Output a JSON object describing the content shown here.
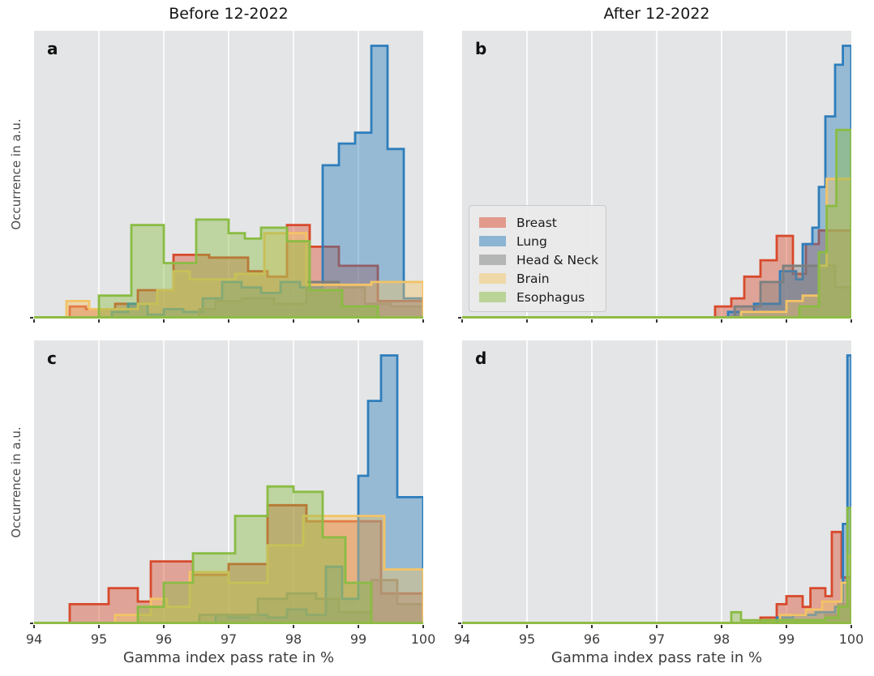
{
  "figure": {
    "col_titles": [
      "Before 12-2022",
      "After 12-2022"
    ],
    "panel_letters": [
      "a",
      "b",
      "c",
      "d"
    ]
  },
  "legend": {
    "items": [
      {
        "label": "Breast",
        "color": "#d8492c"
      },
      {
        "label": "Lung",
        "color": "#2e7ebc"
      },
      {
        "label": "Head & Neck",
        "color": "#7d7f7f"
      },
      {
        "label": "Brain",
        "color": "#f3c366"
      },
      {
        "label": "Esophagus",
        "color": "#8abc43"
      }
    ]
  },
  "chart_data": {
    "type": "histogram",
    "histtype": "stepfilled-outline",
    "xlabel": "Gamma index pass rate in %",
    "ylabel": "Occurrence in a.u.",
    "xlim": [
      94,
      100
    ],
    "xticks": [
      94,
      95,
      96,
      97,
      98,
      99,
      100
    ],
    "grid": "vertical white gridlines at integer ticks",
    "col_titles": [
      "Before 12-2022",
      "After 12-2022"
    ],
    "legend_position": "upper-left of panel b",
    "y_units": "arbitrary occurrence units, 0-100 = tallest bar of each panel",
    "colors": {
      "Breast": "#d8492c",
      "Lung": "#2e7ebc",
      "Head & Neck": "#7d7f7f",
      "Brain": "#f3c366",
      "Esophagus": "#8abc43"
    },
    "fill_opacity": 0.42,
    "panels": [
      {
        "label": "a",
        "row": 0,
        "col": 0,
        "title": "Before 12-2022",
        "series": [
          {
            "name": "Breast",
            "edges": [
              94,
              94.55,
              94.8,
              95.25,
              95.6,
              96.15,
              96.7,
              97.3,
              97.6,
              97.9,
              98.25,
              98.7,
              99.3,
              100
            ],
            "heights": [
              0,
              4,
              3,
              5,
              10,
              23,
              22,
              17,
              15,
              34,
              26,
              19,
              6
            ]
          },
          {
            "name": "Lung",
            "edges": [
              94,
              95.2,
              95.45,
              95.75,
              96.0,
              96.3,
              96.6,
              96.9,
              97.2,
              97.5,
              97.8,
              98.1,
              98.45,
              98.7,
              98.95,
              99.2,
              99.45,
              99.7,
              100
            ],
            "heights": [
              0,
              2,
              5,
              1,
              3,
              2,
              7,
              13,
              11,
              9,
              13,
              11,
              56,
              64,
              68,
              100,
              62,
              7
            ]
          },
          {
            "name": "Head & Neck",
            "edges": [
              94,
              96.55,
              96.8,
              97.2,
              97.7,
              98.2,
              98.7,
              99.1,
              99.5,
              100
            ],
            "heights": [
              0,
              3,
              6,
              7,
              5,
              13,
              11,
              5,
              4
            ]
          },
          {
            "name": "Brain",
            "edges": [
              94,
              94.5,
              94.85,
              95.6,
              95.9,
              96.15,
              96.4,
              97.1,
              97.55,
              98.2,
              99.2,
              100
            ],
            "heights": [
              0,
              6,
              3,
              5,
              10,
              17,
              14,
              16,
              31,
              12,
              13
            ]
          },
          {
            "name": "Esophagus",
            "edges": [
              94,
              95.0,
              95.5,
              96.0,
              96.5,
              97.0,
              97.25,
              97.5,
              97.9,
              98.25,
              98.75,
              99.3,
              100
            ],
            "heights": [
              0,
              8,
              34,
              20,
              36,
              31,
              29,
              33,
              28,
              10,
              4,
              0
            ]
          }
        ]
      },
      {
        "label": "b",
        "row": 0,
        "col": 1,
        "title": "After 12-2022",
        "series": [
          {
            "name": "Breast",
            "edges": [
              94,
              97.9,
              98.15,
              98.35,
              98.6,
              98.85,
              99.1,
              99.3,
              99.5,
              100
            ],
            "heights": [
              0,
              4,
              7,
              15,
              21,
              30,
              16,
              27,
              32
            ]
          },
          {
            "name": "Lung",
            "edges": [
              94,
              98.1,
              98.5,
              98.9,
              99.15,
              99.25,
              99.4,
              99.5,
              99.6,
              99.75,
              99.87,
              100
            ],
            "heights": [
              0,
              2,
              5,
              17,
              14,
              27,
              33,
              48,
              74,
              93,
              100
            ]
          },
          {
            "name": "Head & Neck",
            "edges": [
              94,
              98.2,
              98.6,
              98.95,
              99.25,
              99.75,
              100
            ],
            "heights": [
              0,
              4,
              13,
              19,
              19,
              11
            ]
          },
          {
            "name": "Brain",
            "edges": [
              94,
              98.3,
              99.0,
              99.25,
              99.5,
              99.62,
              100
            ],
            "heights": [
              0,
              2,
              6,
              8,
              19,
              51
            ]
          },
          {
            "name": "Esophagus",
            "edges": [
              94,
              99.2,
              99.5,
              99.62,
              99.77,
              100
            ],
            "heights": [
              0,
              4,
              24,
              41,
              69
            ]
          }
        ]
      },
      {
        "label": "c",
        "row": 1,
        "col": 0,
        "title": "Before 12-2022",
        "series": [
          {
            "name": "Breast",
            "edges": [
              94,
              94.55,
              95.15,
              95.6,
              95.8,
              96.45,
              97.0,
              97.6,
              98.2,
              99.35,
              100
            ],
            "heights": [
              0,
              7,
              13,
              8,
              23,
              18,
              22,
              44,
              38,
              11
            ]
          },
          {
            "name": "Lung",
            "edges": [
              94,
              96.8,
              97.0,
              97.3,
              97.6,
              97.9,
              98.2,
              98.5,
              98.75,
              99.0,
              99.15,
              99.35,
              99.6,
              100
            ],
            "heights": [
              0,
              3,
              2,
              3,
              2,
              5,
              3,
              21,
              9,
              55,
              83,
              100,
              47
            ]
          },
          {
            "name": "Head & Neck",
            "edges": [
              94,
              96.55,
              97.45,
              97.9,
              98.35,
              98.7,
              99.2,
              99.6,
              100
            ],
            "heights": [
              0,
              3,
              9,
              11,
              9,
              4,
              16,
              7
            ]
          },
          {
            "name": "Brain",
            "edges": [
              94,
              95.25,
              95.8,
              96.05,
              96.4,
              97.0,
              97.6,
              98.15,
              99.4,
              100
            ],
            "heights": [
              0,
              3,
              9,
              6,
              19,
              15,
              29,
              40,
              20
            ]
          },
          {
            "name": "Esophagus",
            "edges": [
              94,
              95.6,
              96.0,
              96.45,
              96.75,
              97.1,
              97.6,
              98.0,
              98.45,
              98.8,
              99.2,
              100
            ],
            "heights": [
              0,
              6,
              15,
              26,
              26,
              40,
              51,
              49,
              32,
              15,
              0
            ]
          }
        ]
      },
      {
        "label": "d",
        "row": 1,
        "col": 1,
        "title": "After 12-2022",
        "series": [
          {
            "name": "Breast",
            "edges": [
              94,
              98.6,
              98.85,
              99.0,
              99.25,
              99.37,
              99.6,
              99.7,
              99.85,
              100
            ],
            "heights": [
              0,
              2,
              7,
              10,
              6,
              13,
              10,
              34,
              17
            ]
          },
          {
            "name": "Lung",
            "edges": [
              94,
              98.85,
              99.1,
              99.45,
              99.75,
              99.87,
              99.94,
              100
            ],
            "heights": [
              0,
              2,
              3,
              4,
              6,
              37,
              100
            ]
          },
          {
            "name": "Head & Neck",
            "edges": [
              94,
              99.3,
              99.6,
              99.8,
              99.94,
              100
            ],
            "heights": [
              0,
              1,
              3,
              7,
              8
            ]
          },
          {
            "name": "Brain",
            "edges": [
              94,
              98.9,
              99.3,
              99.55,
              99.85,
              99.94,
              100
            ],
            "heights": [
              0,
              3,
              5,
              8,
              15,
              25
            ]
          },
          {
            "name": "Esophagus",
            "edges": [
              94,
              98.15,
              98.3,
              99.6,
              99.8,
              99.94,
              100
            ],
            "heights": [
              0,
              4,
              1,
              2,
              6,
              43
            ]
          }
        ]
      }
    ]
  }
}
